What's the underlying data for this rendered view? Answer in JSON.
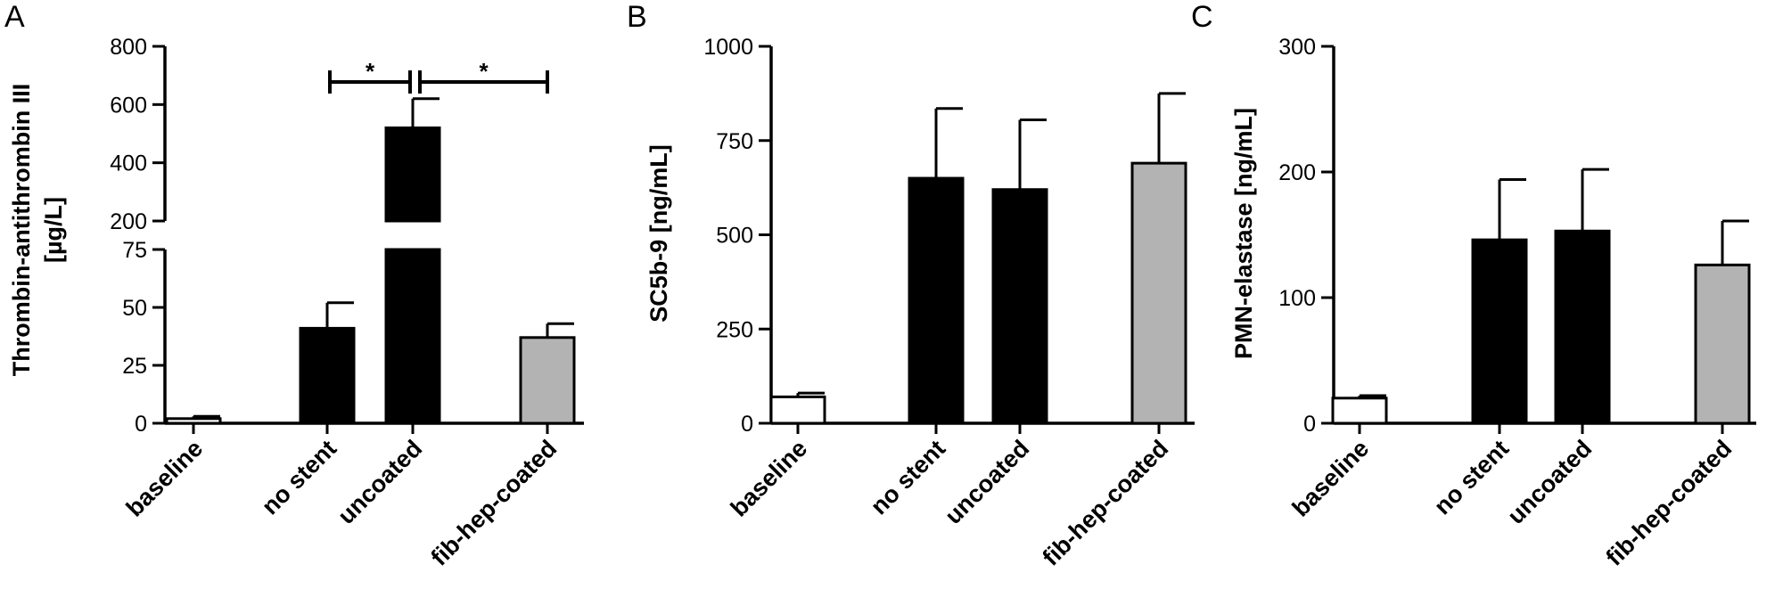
{
  "chart_data": [
    {
      "panel": "A",
      "type": "bar",
      "ylabel": "Thrombin-antithrombin III [µg/L]",
      "ylabel_lines": [
        "Thrombin-antithrombin III",
        "[µg/L]"
      ],
      "categories": [
        "baseline",
        "no stent",
        "uncoated",
        "fib-hep-coated"
      ],
      "values": [
        2,
        41,
        520,
        37
      ],
      "errors": [
        1,
        11,
        100,
        6
      ],
      "colors": [
        "#ffffff",
        "#000000",
        "#000000",
        "#b3b3b3"
      ],
      "y_axis_break": {
        "lower": [
          0,
          75
        ],
        "upper": [
          200,
          800
        ]
      },
      "ticks_lower": [
        "0",
        "25",
        "50",
        "75"
      ],
      "ticks_upper": [
        "200",
        "400",
        "600",
        "800"
      ],
      "significance": [
        {
          "from": "no stent",
          "to": "uncoated",
          "label": "*"
        },
        {
          "from": "uncoated",
          "to": "fib-hep-coated",
          "label": "*"
        }
      ]
    },
    {
      "panel": "B",
      "type": "bar",
      "ylabel": "SC5b-9 [ng/mL]",
      "categories": [
        "baseline",
        "no stent",
        "uncoated",
        "fib-hep-coated"
      ],
      "values": [
        70,
        650,
        620,
        690
      ],
      "errors": [
        10,
        185,
        185,
        185
      ],
      "colors": [
        "#ffffff",
        "#000000",
        "#000000",
        "#b3b3b3"
      ],
      "ylim": [
        0,
        1000
      ],
      "ticks": [
        "0",
        "250",
        "500",
        "750",
        "1000"
      ]
    },
    {
      "panel": "C",
      "type": "bar",
      "ylabel": "PMN-elastase [ng/mL]",
      "categories": [
        "baseline",
        "no stent",
        "uncoated",
        "fib-hep-coated"
      ],
      "values": [
        20,
        146,
        153,
        126
      ],
      "errors": [
        2,
        48,
        49,
        35
      ],
      "colors": [
        "#ffffff",
        "#000000",
        "#000000",
        "#b3b3b3"
      ],
      "ylim": [
        0,
        300
      ],
      "ticks": [
        "0",
        "100",
        "200",
        "300"
      ]
    }
  ]
}
